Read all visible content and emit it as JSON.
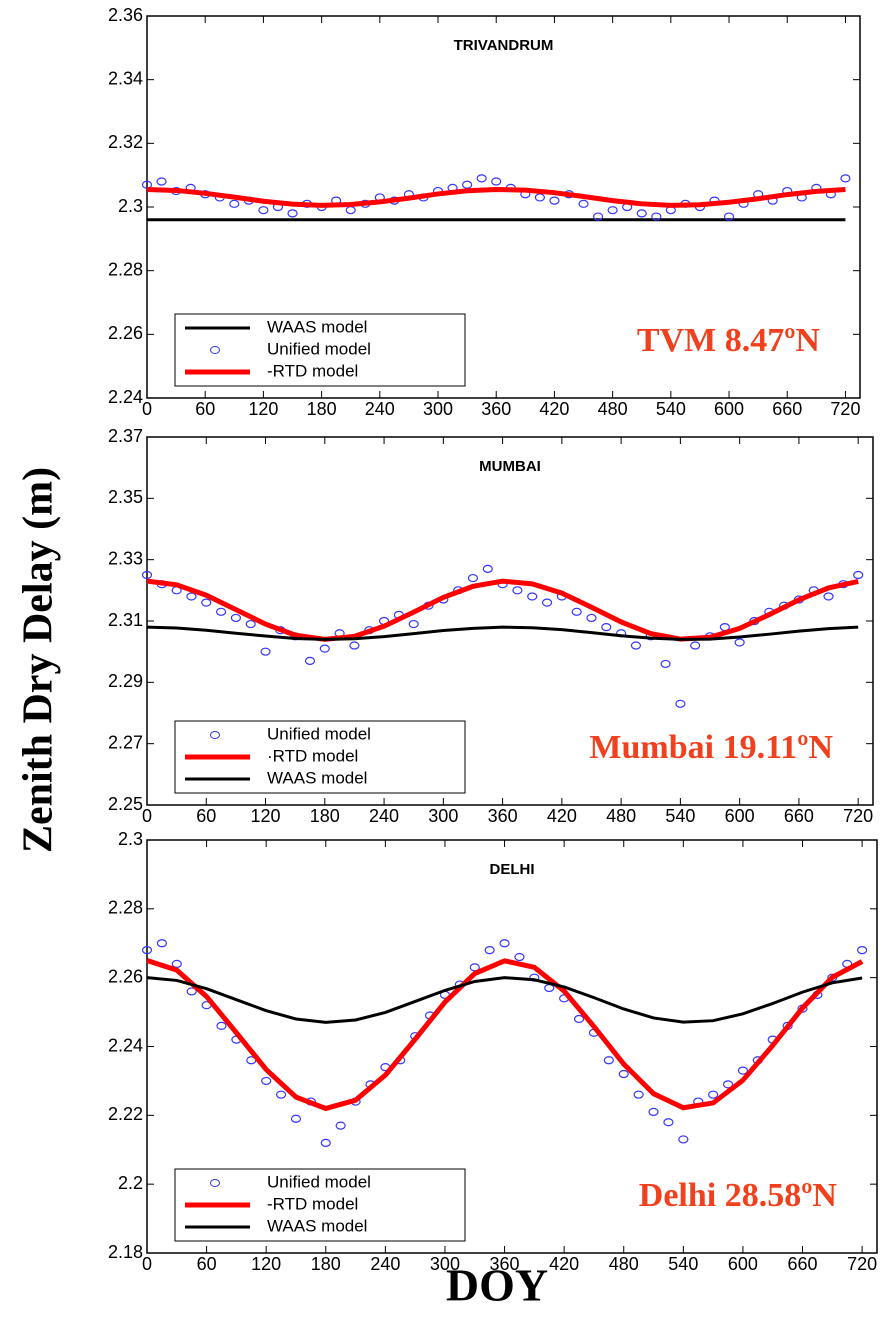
{
  "labels": {
    "ylabel": "Zenith Dry Delay (m)",
    "xlabel": "DOY"
  },
  "chart_data": [
    {
      "type": "line",
      "title": "TRIVANDRUM",
      "annotation": "TVM 8.47ºN",
      "legend": "lower left",
      "xlim": [
        0,
        735
      ],
      "ylim": [
        2.24,
        2.36
      ],
      "xticks": [
        0,
        60,
        120,
        180,
        240,
        300,
        360,
        420,
        480,
        540,
        600,
        660,
        720
      ],
      "yticks": [
        2.24,
        2.26,
        2.28,
        2.3,
        2.32,
        2.34,
        2.36
      ],
      "series": [
        {
          "name": "WAAS model",
          "type": "line",
          "color": "#000000",
          "x": [
            0,
            30,
            60,
            90,
            120,
            150,
            180,
            210,
            240,
            270,
            300,
            330,
            360,
            390,
            420,
            450,
            480,
            510,
            540,
            570,
            600,
            630,
            660,
            690,
            720
          ],
          "values": [
            2.296,
            2.296,
            2.296,
            2.296,
            2.296,
            2.296,
            2.296,
            2.296,
            2.296,
            2.296,
            2.296,
            2.296,
            2.296,
            2.296,
            2.296,
            2.296,
            2.296,
            2.296,
            2.296,
            2.296,
            2.296,
            2.296,
            2.296,
            2.296,
            2.296
          ]
        },
        {
          "name": "Unified model",
          "type": "scatter",
          "color": "#3535ff",
          "x": [
            0,
            15,
            30,
            45,
            60,
            75,
            90,
            105,
            120,
            135,
            150,
            165,
            180,
            195,
            210,
            225,
            240,
            255,
            270,
            285,
            300,
            315,
            330,
            345,
            360,
            375,
            390,
            405,
            420,
            435,
            450,
            465,
            480,
            495,
            510,
            525,
            540,
            555,
            570,
            585,
            600,
            615,
            630,
            645,
            660,
            675,
            690,
            705,
            720
          ],
          "values": [
            2.307,
            2.308,
            2.305,
            2.306,
            2.304,
            2.303,
            2.301,
            2.302,
            2.299,
            2.3,
            2.298,
            2.301,
            2.3,
            2.302,
            2.299,
            2.301,
            2.303,
            2.302,
            2.304,
            2.303,
            2.305,
            2.306,
            2.307,
            2.309,
            2.308,
            2.306,
            2.304,
            2.303,
            2.302,
            2.304,
            2.301,
            2.297,
            2.299,
            2.3,
            2.298,
            2.297,
            2.299,
            2.301,
            2.3,
            2.302,
            2.297,
            2.301,
            2.304,
            2.302,
            2.305,
            2.303,
            2.306,
            2.304,
            2.309
          ]
        },
        {
          "name": "-RTD model",
          "type": "line",
          "color": "#ff0000",
          "x": [
            0,
            30,
            60,
            90,
            120,
            150,
            180,
            210,
            240,
            270,
            300,
            330,
            360,
            390,
            420,
            450,
            480,
            510,
            540,
            570,
            600,
            630,
            660,
            690,
            720
          ],
          "values": [
            2.3055,
            2.3052,
            2.3043,
            2.3031,
            2.3018,
            2.3009,
            2.3005,
            2.3008,
            2.3016,
            2.3028,
            2.3041,
            2.3051,
            2.3055,
            2.3053,
            2.3045,
            2.3033,
            2.302,
            2.301,
            2.3005,
            2.3007,
            2.3015,
            2.3026,
            2.3039,
            2.3049,
            2.3055
          ]
        }
      ]
    },
    {
      "type": "line",
      "title": "MUMBAI",
      "annotation": "Mumbai 19.11ºN",
      "legend": "lower left",
      "xlim": [
        0,
        735
      ],
      "ylim": [
        2.25,
        2.37
      ],
      "xticks": [
        0,
        60,
        120,
        180,
        240,
        300,
        360,
        420,
        480,
        540,
        600,
        660,
        720
      ],
      "yticks": [
        2.25,
        2.27,
        2.29,
        2.31,
        2.33,
        2.35,
        2.37
      ],
      "series": [
        {
          "name": "Unified model",
          "type": "scatter",
          "color": "#3535ff",
          "x": [
            0,
            15,
            30,
            45,
            60,
            75,
            90,
            105,
            120,
            135,
            150,
            165,
            180,
            195,
            210,
            225,
            240,
            255,
            270,
            285,
            300,
            315,
            330,
            345,
            360,
            375,
            390,
            405,
            420,
            435,
            450,
            465,
            480,
            495,
            510,
            525,
            540,
            555,
            570,
            585,
            600,
            615,
            630,
            645,
            660,
            675,
            690,
            705,
            720
          ],
          "values": [
            2.325,
            2.322,
            2.32,
            2.318,
            2.316,
            2.313,
            2.311,
            2.309,
            2.3,
            2.307,
            2.305,
            2.297,
            2.301,
            2.306,
            2.302,
            2.307,
            2.31,
            2.312,
            2.309,
            2.315,
            2.317,
            2.32,
            2.324,
            2.327,
            2.322,
            2.32,
            2.318,
            2.316,
            2.318,
            2.313,
            2.311,
            2.308,
            2.306,
            2.302,
            2.305,
            2.296,
            2.283,
            2.302,
            2.305,
            2.308,
            2.303,
            2.31,
            2.313,
            2.315,
            2.317,
            2.32,
            2.318,
            2.322,
            2.325
          ]
        },
        {
          "name": "·RTD model",
          "type": "line",
          "color": "#ff0000",
          "x": [
            0,
            30,
            60,
            90,
            120,
            150,
            180,
            210,
            240,
            270,
            300,
            330,
            360,
            390,
            420,
            450,
            480,
            510,
            540,
            570,
            600,
            630,
            660,
            690,
            720
          ],
          "values": [
            2.323,
            2.3218,
            2.3184,
            2.3137,
            2.309,
            2.3054,
            2.304,
            2.305,
            2.3083,
            2.3129,
            2.3177,
            2.3213,
            2.323,
            2.3221,
            2.3191,
            2.3145,
            2.3097,
            2.3059,
            2.3041,
            2.3047,
            2.3076,
            2.3121,
            2.3169,
            2.3208,
            2.3229
          ]
        },
        {
          "name": "WAAS model",
          "type": "line",
          "color": "#000000",
          "x": [
            0,
            30,
            60,
            90,
            120,
            150,
            180,
            210,
            240,
            270,
            300,
            330,
            360,
            390,
            420,
            450,
            480,
            510,
            540,
            570,
            600,
            630,
            660,
            690,
            720
          ],
          "values": [
            2.308,
            2.3077,
            2.307,
            2.306,
            2.3051,
            2.3043,
            2.304,
            2.3042,
            2.3049,
            2.3059,
            2.3069,
            2.3076,
            2.308,
            2.3078,
            2.3072,
            2.3062,
            2.3052,
            2.3044,
            2.304,
            2.3041,
            2.3048,
            2.3057,
            2.3067,
            2.3075,
            2.308
          ]
        }
      ]
    },
    {
      "type": "line",
      "title": "DELHI",
      "annotation": "Delhi 28.58ºN",
      "legend": "lower left",
      "xlim": [
        0,
        735
      ],
      "ylim": [
        2.18,
        2.3
      ],
      "xticks": [
        0,
        60,
        120,
        180,
        240,
        300,
        360,
        420,
        480,
        540,
        600,
        660,
        720
      ],
      "yticks": [
        2.18,
        2.2,
        2.22,
        2.24,
        2.26,
        2.28,
        2.3
      ],
      "series": [
        {
          "name": "Unified model",
          "type": "scatter",
          "color": "#3535ff",
          "x": [
            0,
            15,
            30,
            45,
            60,
            75,
            90,
            105,
            120,
            135,
            150,
            165,
            180,
            195,
            210,
            225,
            240,
            255,
            270,
            285,
            300,
            315,
            330,
            345,
            360,
            375,
            390,
            405,
            420,
            435,
            450,
            465,
            480,
            495,
            510,
            525,
            540,
            555,
            570,
            585,
            600,
            615,
            630,
            645,
            660,
            675,
            690,
            705,
            720
          ],
          "values": [
            2.268,
            2.27,
            2.264,
            2.256,
            2.252,
            2.246,
            2.242,
            2.236,
            2.23,
            2.226,
            2.219,
            2.224,
            2.212,
            2.217,
            2.224,
            2.229,
            2.234,
            2.236,
            2.243,
            2.249,
            2.255,
            2.258,
            2.263,
            2.268,
            2.27,
            2.266,
            2.26,
            2.257,
            2.254,
            2.248,
            2.244,
            2.236,
            2.232,
            2.226,
            2.221,
            2.218,
            2.213,
            2.224,
            2.226,
            2.229,
            2.233,
            2.236,
            2.242,
            2.246,
            2.251,
            2.255,
            2.26,
            2.264,
            2.268
          ]
        },
        {
          "name": "-RTD model",
          "type": "line",
          "color": "#ff0000",
          "x": [
            0,
            30,
            60,
            90,
            120,
            150,
            180,
            210,
            240,
            270,
            300,
            330,
            360,
            390,
            420,
            450,
            480,
            510,
            540,
            570,
            600,
            630,
            660,
            690,
            720
          ],
          "values": [
            2.265,
            2.2622,
            2.2545,
            2.244,
            2.2333,
            2.2253,
            2.222,
            2.2244,
            2.2317,
            2.2421,
            2.2529,
            2.2612,
            2.2649,
            2.263,
            2.2561,
            2.2458,
            2.2349,
            2.2263,
            2.2222,
            2.2236,
            2.2302,
            2.2403,
            2.2512,
            2.2601,
            2.2647
          ]
        },
        {
          "name": "WAAS model",
          "type": "line",
          "color": "#000000",
          "x": [
            0,
            30,
            60,
            90,
            120,
            150,
            180,
            210,
            240,
            270,
            300,
            330,
            360,
            390,
            420,
            450,
            480,
            510,
            540,
            570,
            600,
            630,
            660,
            690,
            720
          ],
          "values": [
            2.26,
            2.2592,
            2.2568,
            2.2536,
            2.2504,
            2.248,
            2.247,
            2.2477,
            2.2499,
            2.2531,
            2.2563,
            2.2589,
            2.26,
            2.2594,
            2.2573,
            2.2542,
            2.2509,
            2.2483,
            2.2471,
            2.2475,
            2.2495,
            2.2525,
            2.2558,
            2.2585,
            2.2599
          ]
        }
      ]
    }
  ]
}
